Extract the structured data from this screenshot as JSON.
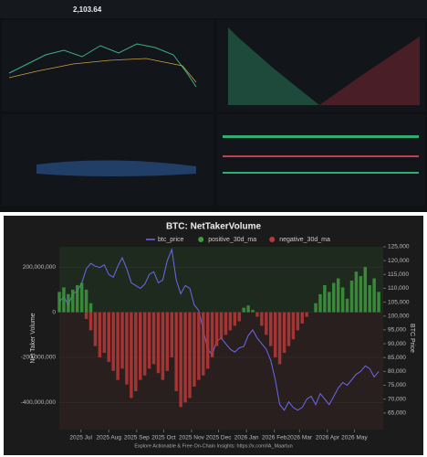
{
  "dashboard": {
    "price": "2,103.64"
  },
  "chart_data": {
    "type": "bar",
    "title": "BTC: NetTakerVolume",
    "y_label": "Net Taker Volume",
    "y2_label": "BTC Price",
    "footer": "Explore Actionable & Free On-Chain Insights: https://x.com/IA_Maartun",
    "x": [
      0,
      5,
      10,
      15,
      20,
      25,
      30,
      35,
      40,
      45,
      50,
      55,
      60,
      65,
      70,
      75,
      80,
      85,
      90,
      95,
      100,
      105,
      110,
      115,
      120,
      125,
      130,
      135,
      140,
      145,
      150,
      155,
      160,
      165,
      170,
      175,
      180,
      185,
      190,
      195,
      200,
      205,
      210,
      215,
      220,
      225,
      230,
      235,
      240,
      245,
      250,
      255,
      260,
      265,
      270,
      275,
      280,
      285,
      290,
      295,
      300,
      305,
      310,
      315,
      320,
      325,
      330,
      335,
      340,
      345,
      350,
      355
    ],
    "xlim": [
      0,
      360
    ],
    "xticks": [
      {
        "value": 24,
        "label": "2025 Jul"
      },
      {
        "value": 55,
        "label": "2025 Aug"
      },
      {
        "value": 86,
        "label": "2025 Sep"
      },
      {
        "value": 116,
        "label": "2025 Oct"
      },
      {
        "value": 147,
        "label": "2025 Nov"
      },
      {
        "value": 177,
        "label": "2025 Dec"
      },
      {
        "value": 208,
        "label": "2026 Jan"
      },
      {
        "value": 239,
        "label": "2026 Feb"
      },
      {
        "value": 267,
        "label": "2026 Mar"
      },
      {
        "value": 298,
        "label": "2026 Apr"
      },
      {
        "value": 328,
        "label": "2026 May"
      }
    ],
    "ylim": [
      -520000000,
      290000000
    ],
    "yticks": [
      {
        "value": 200000000,
        "label": "200,000,000"
      },
      0,
      {
        "value": -200000000,
        "label": "-200,000,000"
      },
      {
        "value": -400000000,
        "label": "-400,000,000"
      }
    ],
    "y2lim": [
      59000,
      125000
    ],
    "y2ticks": [
      {
        "value": 65000,
        "label": "65,000"
      },
      {
        "value": 70000,
        "label": "70,000"
      },
      {
        "value": 75000,
        "label": "75,000"
      },
      {
        "value": 80000,
        "label": "80,000"
      },
      {
        "value": 85000,
        "label": "85,000"
      },
      {
        "value": 90000,
        "label": "90,000"
      },
      {
        "value": 95000,
        "label": "95,000"
      },
      {
        "value": 100000,
        "label": "100,000"
      },
      {
        "value": 105000,
        "label": "105,000"
      },
      {
        "value": 110000,
        "label": "110,000"
      },
      {
        "value": 115000,
        "label": "115,000"
      },
      {
        "value": 120000,
        "label": "120,000"
      },
      {
        "value": 125000,
        "label": "125,000"
      }
    ],
    "series": [
      {
        "name": "btc_price",
        "color": "#6a6ae8",
        "axis": "y2",
        "values": [
          105000,
          107000,
          104000,
          108000,
          109000,
          112000,
          117000,
          119000,
          118000,
          117500,
          118500,
          115000,
          114000,
          118000,
          121000,
          117000,
          112000,
          111000,
          110000,
          111500,
          115000,
          116000,
          112000,
          113000,
          120000,
          124000,
          113000,
          108000,
          111000,
          110000,
          104000,
          102000,
          95000,
          88000,
          86000,
          91000,
          92000,
          90000,
          88000,
          87000,
          88500,
          89000,
          93000,
          95000,
          92000,
          90000,
          88000,
          84000,
          77000,
          68000,
          66000,
          69000,
          67000,
          66000,
          67000,
          70000,
          71000,
          68000,
          72000,
          70000,
          68000,
          71000,
          74000,
          76000,
          75000,
          77000,
          79000,
          80000,
          82000,
          81000,
          78000,
          80000
        ]
      },
      {
        "name": "positive_30d_ma",
        "color": "#3f9a3f",
        "values": [
          90000000,
          110000000,
          80000000,
          100000000,
          120000000,
          130000000,
          100000000,
          40000000,
          0,
          0,
          0,
          0,
          0,
          0,
          0,
          0,
          0,
          0,
          0,
          0,
          0,
          0,
          0,
          0,
          0,
          0,
          0,
          0,
          0,
          0,
          0,
          0,
          0,
          0,
          0,
          0,
          0,
          0,
          0,
          0,
          0,
          20000000,
          30000000,
          10000000,
          0,
          0,
          0,
          0,
          0,
          0,
          0,
          0,
          0,
          0,
          0,
          0,
          0,
          40000000,
          80000000,
          120000000,
          90000000,
          130000000,
          150000000,
          110000000,
          60000000,
          140000000,
          180000000,
          160000000,
          200000000,
          120000000,
          150000000,
          90000000
        ]
      },
      {
        "name": "negative_30d_ma",
        "color": "#b83a3a",
        "values": [
          0,
          0,
          0,
          0,
          0,
          0,
          -30000000,
          -80000000,
          -150000000,
          -200000000,
          -180000000,
          -220000000,
          -260000000,
          -300000000,
          -250000000,
          -320000000,
          -380000000,
          -350000000,
          -300000000,
          -280000000,
          -250000000,
          -230000000,
          -270000000,
          -300000000,
          -260000000,
          -200000000,
          -350000000,
          -420000000,
          -400000000,
          -380000000,
          -330000000,
          -300000000,
          -280000000,
          -250000000,
          -200000000,
          -150000000,
          -120000000,
          -100000000,
          -80000000,
          -60000000,
          -40000000,
          0,
          0,
          0,
          -20000000,
          -60000000,
          -100000000,
          -150000000,
          -200000000,
          -230000000,
          -180000000,
          -150000000,
          -120000000,
          -80000000,
          -50000000,
          -20000000,
          0,
          0,
          0,
          0,
          0,
          0,
          0,
          0,
          0,
          0,
          0,
          0,
          0,
          0,
          0,
          0
        ]
      }
    ]
  }
}
